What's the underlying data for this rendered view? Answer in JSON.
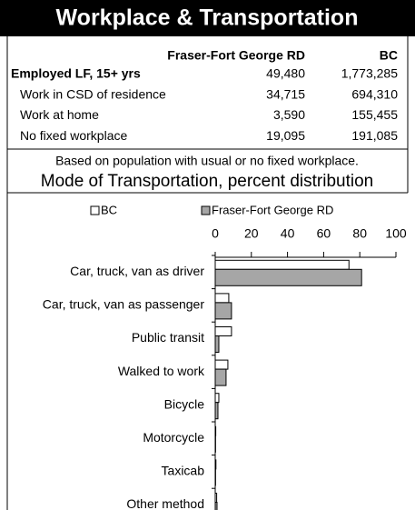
{
  "header": {
    "title": "Workplace & Transportation"
  },
  "table": {
    "columns": [
      "Fraser-Fort George RD",
      "BC"
    ],
    "rows": [
      [
        "Employed LF, 15+ yrs",
        "49,480",
        "1,773,285"
      ],
      [
        "Work in CSD of residence",
        "34,715",
        "694,310"
      ],
      [
        "Work at home",
        "3,590",
        "155,455"
      ],
      [
        "No fixed workplace",
        "19,095",
        "191,085"
      ]
    ],
    "note": "Based on population with usual or no fixed workplace."
  },
  "chart_data": {
    "type": "bar",
    "orientation": "horizontal",
    "title": "Mode of Transportation, percent distribution",
    "categories": [
      "Car, truck, van as driver",
      "Car, truck, van as passenger",
      "Public transit",
      "Walked to work",
      "Bicycle",
      "Motorcycle",
      "Taxicab",
      "Other method"
    ],
    "series": [
      {
        "name": "BC",
        "color": "#ffffff",
        "values": [
          74,
          7.5,
          9,
          7,
          2,
          0.3,
          0.4,
          0.8
        ]
      },
      {
        "name": "Fraser-Fort George RD",
        "color": "#a6a6a6",
        "values": [
          81,
          9,
          2,
          6,
          1.5,
          0.2,
          0.2,
          1
        ]
      }
    ],
    "xlim": [
      0,
      100
    ],
    "xticks": [
      0,
      20,
      40,
      60,
      80,
      100
    ],
    "grid": false,
    "legend": "top"
  }
}
